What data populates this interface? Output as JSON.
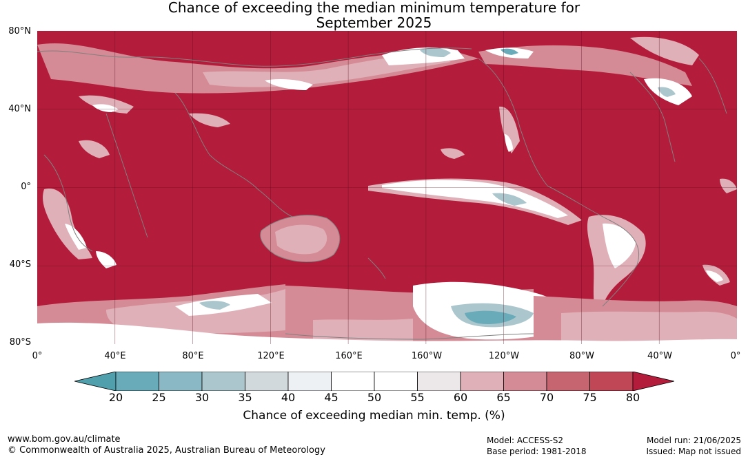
{
  "title_lines": [
    "Chance of exceeding the median minimum temperature for",
    "September 2025"
  ],
  "lat_labels": [
    "80°N",
    "40°N",
    "0°",
    "40°S",
    "80°S"
  ],
  "lon_labels": [
    "0°",
    "40°E",
    "80°E",
    "120°E",
    "160°E",
    "160°W",
    "120°W",
    "80°W",
    "40°W",
    "0°"
  ],
  "colorbar": {
    "ticks": [
      "20",
      "25",
      "30",
      "35",
      "40",
      "45",
      "50",
      "55",
      "60",
      "65",
      "70",
      "75",
      "80"
    ],
    "colors": [
      "#4f9fad",
      "#6aabba",
      "#8bb8c5",
      "#abc7cd",
      "#d2d9dc",
      "#eef1f3",
      "#ffffff",
      "#ffffff",
      "#ece8e9",
      "#e0b0b8",
      "#d48b95",
      "#c66470",
      "#bf4756",
      "#b31c3a"
    ],
    "label": "Chance of exceeding median min. temp. (%)"
  },
  "footer": {
    "url": "www.bom.gov.au/climate",
    "copyright": "© Commonwealth of Australia 2025, Australian Bureau of Meteorology",
    "model": "Model: ACCESS-S2",
    "base_period": "Base period: 1981-2018",
    "model_run": "Model run: 21/06/2025",
    "issued": "Issued: Map not issued"
  },
  "map_colors": {
    "base": "#b31c3a",
    "pale_red": "#d48b95",
    "light_pink": "#e0b0b8",
    "white": "#ffffff",
    "pale_blue": "#abc7cd",
    "blue": "#6aabba",
    "coast": "#808080"
  }
}
